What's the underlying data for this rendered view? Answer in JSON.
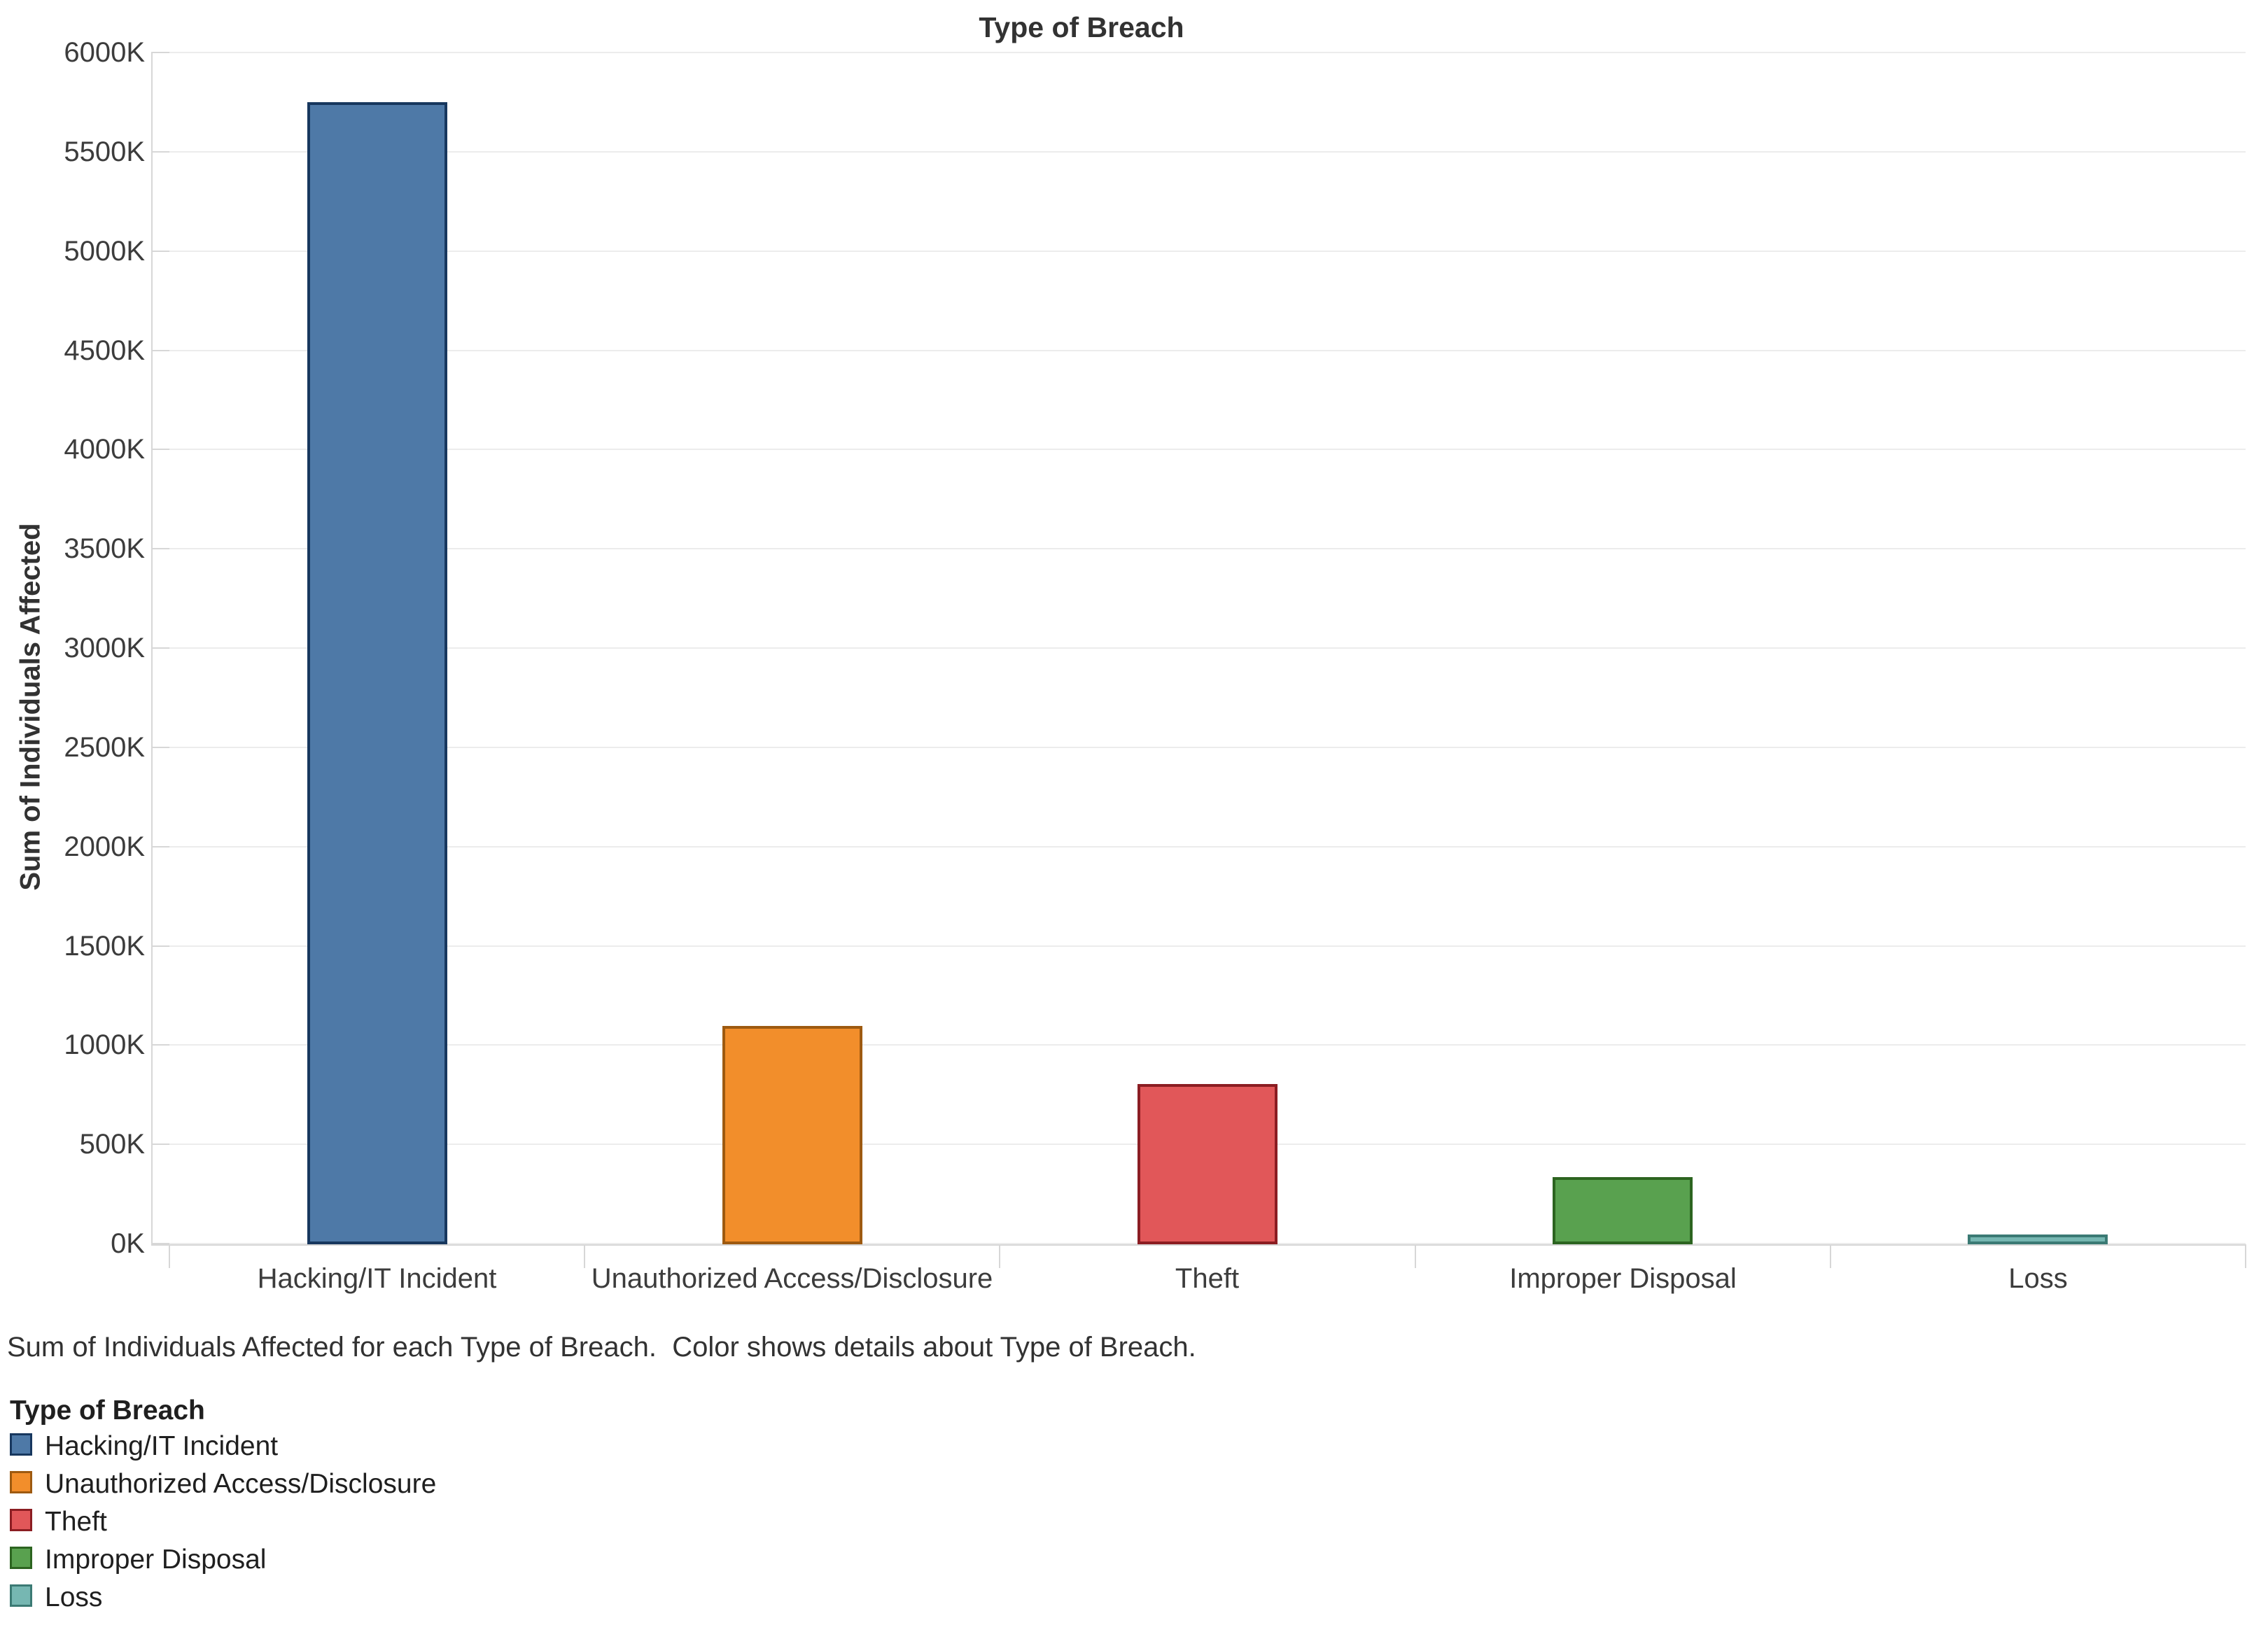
{
  "header": {
    "title": "Type of Breach"
  },
  "caption": {
    "text": "Sum of Individuals Affected for each Type of Breach.  Color shows details about Type of Breach."
  },
  "legend": {
    "title": "Type of Breach",
    "items": [
      {
        "label": "Hacking/IT Incident",
        "fill": "#4e79a7",
        "border": "#17375e"
      },
      {
        "label": "Unauthorized Access/Disclosure",
        "fill": "#f28e2b",
        "border": "#9e5a10"
      },
      {
        "label": "Theft",
        "fill": "#e15759",
        "border": "#8b1d22"
      },
      {
        "label": "Improper Disposal",
        "fill": "#59a14f",
        "border": "#2c6420"
      },
      {
        "label": "Loss",
        "fill": "#76b7b2",
        "border": "#3b7a74"
      }
    ]
  },
  "chart_data": {
    "type": "bar",
    "title": "Type of Breach",
    "xlabel": "",
    "ylabel": "Sum of Individuals Affected",
    "categories": [
      "Hacking/IT Incident",
      "Unauthorized Access/Disclosure",
      "Theft",
      "Improper Disposal",
      "Loss"
    ],
    "values": [
      5750,
      1095,
      805,
      335,
      45
    ],
    "value_unit": "thousands of individuals (K)",
    "series": [
      {
        "name": "Hacking/IT Incident",
        "value": 5750,
        "fill": "#4e79a7",
        "border": "#17375e"
      },
      {
        "name": "Unauthorized Access/Disclosure",
        "value": 1095,
        "fill": "#f28e2b",
        "border": "#9e5a10"
      },
      {
        "name": "Theft",
        "value": 805,
        "fill": "#e15759",
        "border": "#8b1d22"
      },
      {
        "name": "Improper Disposal",
        "value": 335,
        "fill": "#59a14f",
        "border": "#2c6420"
      },
      {
        "name": "Loss",
        "value": 45,
        "fill": "#76b7b2",
        "border": "#3b7a74"
      }
    ],
    "ylim": [
      0,
      6000
    ],
    "ytick_step": 500,
    "ytick_labels": [
      "0K",
      "500K",
      "1000K",
      "1500K",
      "2000K",
      "2500K",
      "3000K",
      "3500K",
      "4000K",
      "4500K",
      "5000K",
      "5500K",
      "6000K"
    ],
    "grid": true,
    "legend_position": "bottom-left"
  }
}
